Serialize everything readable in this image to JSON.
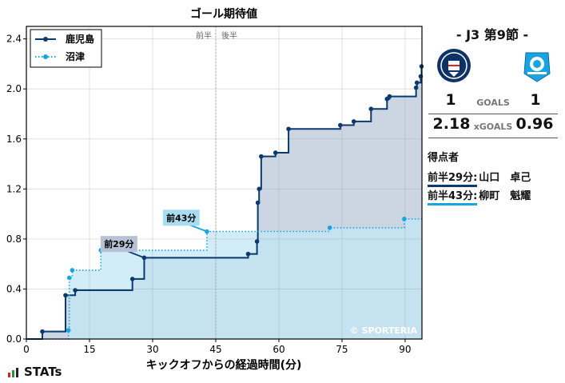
{
  "chart_data": {
    "type": "line",
    "title": "ゴール期待値",
    "xlabel": "キックオフからの経過時間(分)",
    "ylabel": "",
    "xlim": [
      0,
      94
    ],
    "ylim": [
      0,
      2.5
    ],
    "xticks": [
      0,
      15,
      30,
      45,
      60,
      75,
      90
    ],
    "yticks": [
      0.0,
      0.4,
      0.8,
      1.2,
      1.6,
      2.0,
      2.4
    ],
    "halftime_x": 45,
    "halftime_labels": [
      "前半",
      "後半"
    ],
    "grid": true,
    "legend_position": "top-left",
    "watermark": "© SPORTERIA",
    "series": [
      {
        "name": "鹿児島",
        "color": "#0a3a6e",
        "fill": "#ccd6e3",
        "style": "solid",
        "points": [
          [
            3.8,
            0.06
          ],
          [
            9.3,
            0.35
          ],
          [
            11.6,
            0.39
          ],
          [
            25.2,
            0.48
          ],
          [
            28.0,
            0.65
          ],
          [
            52.7,
            0.68
          ],
          [
            54.8,
            0.78
          ],
          [
            55.0,
            1.09
          ],
          [
            55.3,
            1.2
          ],
          [
            55.8,
            1.46
          ],
          [
            59.2,
            1.49
          ],
          [
            62.3,
            1.68
          ],
          [
            74.6,
            1.71
          ],
          [
            77.8,
            1.74
          ],
          [
            81.9,
            1.84
          ],
          [
            85.7,
            1.92
          ],
          [
            86.3,
            1.94
          ],
          [
            92.6,
            2.01
          ],
          [
            92.8,
            2.05
          ],
          [
            93.7,
            2.1
          ],
          [
            93.9,
            2.18
          ]
        ]
      },
      {
        "name": "沼津",
        "color": "#15a5e0",
        "fill": "#c3e6f5",
        "style": "dotted",
        "points": [
          [
            10.0,
            0.07
          ],
          [
            10.2,
            0.49
          ],
          [
            10.9,
            0.55
          ],
          [
            17.7,
            0.71
          ],
          [
            42.9,
            0.86
          ],
          [
            72.1,
            0.89
          ],
          [
            89.8,
            0.96
          ]
        ]
      }
    ],
    "annotations": [
      {
        "label": "前29分",
        "series": 0,
        "x": 28.0,
        "y": 0.65,
        "label_x": 22.0,
        "label_y": 0.76
      },
      {
        "label": "前43分",
        "series": 1,
        "x": 42.9,
        "y": 0.86,
        "label_x": 36.8,
        "label_y": 0.97
      }
    ]
  },
  "match": {
    "title": "- J3 第9節 -",
    "home_crest": "kagoshima-crest-icon",
    "away_crest": "numazu-crest-icon",
    "home_goals": "1",
    "away_goals": "1",
    "goals_label": "GOALS",
    "home_xg": "2.18",
    "away_xg": "0.96",
    "xg_label": "xGOALS",
    "scorers_title": "得点者",
    "scorers": [
      {
        "time": "前半29分:",
        "player": "山口　卓己",
        "color": "#0a3a6e"
      },
      {
        "time": "前半43分:",
        "player": "柳町　魁耀",
        "color": "#15a5e0"
      }
    ]
  },
  "branding": {
    "name": "STATs",
    "icon": "stats-bars-icon"
  }
}
